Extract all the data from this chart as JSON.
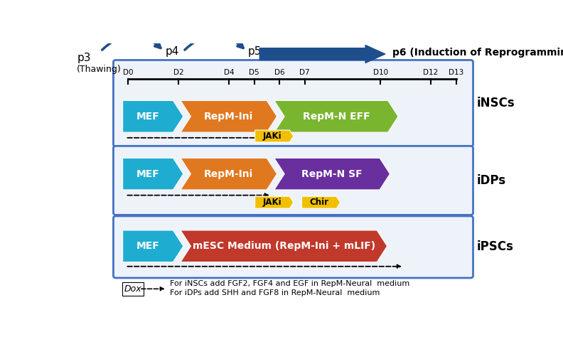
{
  "bg_color": "#ffffff",
  "panel_bg": "#eef2f9",
  "panel_border": "#4472c4",
  "top_arrow_color": "#1f4e8c",
  "mef_color": "#1eadd0",
  "repm_ini_color": "#e07820",
  "inscs_repm_n_color": "#7ab530",
  "idps_repm_n_color": "#6a2f9e",
  "ipsc_medium_color": "#c0392b",
  "jaki_color": "#f0c000",
  "chir_color": "#f0c000",
  "label_inscs": "iNSCs",
  "label_idps": "iDPs",
  "label_ipscs": "iPSCs",
  "timeline_labels": [
    "D0",
    "D2",
    "D4",
    "D5",
    "D6",
    "D7",
    "D10",
    "D12",
    "D13"
  ],
  "note_line1": "For iNSCs add FGF2, FGF4 and EGF in RepM-Neural  medium",
  "note_line2": "For iDPs add SHH and FGF8 in RepM-Neural  medium"
}
